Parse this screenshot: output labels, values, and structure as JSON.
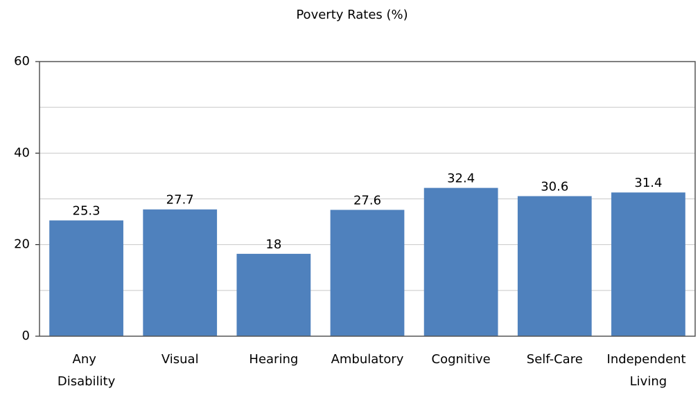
{
  "chart_data": {
    "type": "bar",
    "title": "Poverty Rates (%)",
    "categories": [
      "Any Disability",
      "Visual",
      "Hearing",
      "Ambulatory",
      "Cognitive",
      "Self-Care",
      "Independent Living"
    ],
    "values": [
      25.3,
      27.7,
      18,
      27.6,
      32.4,
      30.6,
      31.4
    ],
    "color": "#4f81bd",
    "ylim": [
      0,
      60
    ],
    "yticks": [
      0,
      20,
      40,
      60
    ],
    "minor_yticks": [
      10,
      30,
      50
    ],
    "grid": true
  }
}
